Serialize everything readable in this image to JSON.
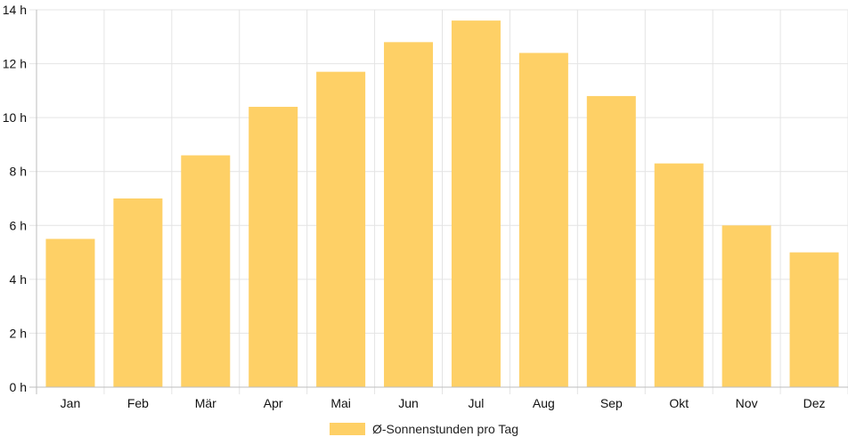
{
  "chart_data": {
    "type": "bar",
    "categories": [
      "Jan",
      "Feb",
      "Mär",
      "Apr",
      "Mai",
      "Jun",
      "Jul",
      "Aug",
      "Sep",
      "Okt",
      "Nov",
      "Dez"
    ],
    "series": [
      {
        "name": "Ø-Sonnenstunden pro Tag",
        "values": [
          5.5,
          7.0,
          8.6,
          10.4,
          11.7,
          12.8,
          13.6,
          12.4,
          10.8,
          8.3,
          6.0,
          5.0
        ],
        "color": "#fed066"
      }
    ],
    "y_ticks": [
      "0 h",
      "2 h",
      "4 h",
      "6 h",
      "8 h",
      "10 h",
      "12 h",
      "14 h"
    ],
    "ylim": [
      0,
      14
    ],
    "grid": true,
    "legend": "bottom",
    "title": "",
    "xlabel": "",
    "ylabel": ""
  }
}
